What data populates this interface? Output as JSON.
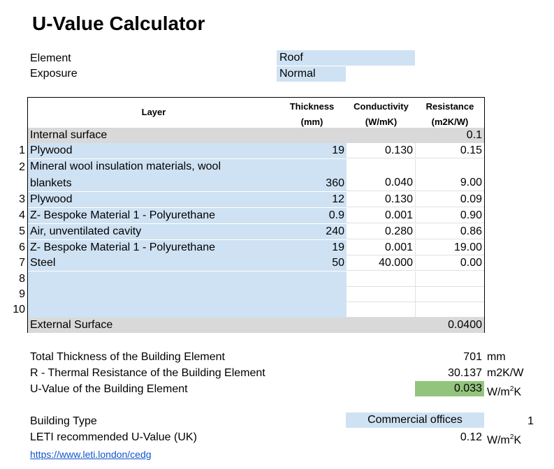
{
  "title": "U-Value Calculator",
  "element": {
    "label": "Element",
    "value": "Roof"
  },
  "exposure": {
    "label": "Exposure",
    "value": "Normal"
  },
  "table": {
    "headers": {
      "layer": "Layer",
      "thickness": "Thickness",
      "thickness_unit": "(mm)",
      "conductivity": "Conductivity",
      "conductivity_unit": "(W/mK)",
      "resistance": "Resistance",
      "resistance_unit": "(m2K/W)"
    },
    "internal_surface": {
      "label": "Internal surface",
      "resistance": "0.1"
    },
    "layers": [
      {
        "num": "1",
        "name": "Plywood",
        "thickness": "19",
        "conductivity": "0.130",
        "resistance": "0.15"
      },
      {
        "num": "2",
        "name": "Mineral wool insulation materials, wool",
        "name2": "blankets",
        "thickness": "360",
        "conductivity": "0.040",
        "resistance": "9.00"
      },
      {
        "num": "3",
        "name": "Plywood",
        "thickness": "12",
        "conductivity": "0.130",
        "resistance": "0.09"
      },
      {
        "num": "4",
        "name": "Z- Bespoke Material 1 - Polyurethane",
        "thickness": "0.9",
        "conductivity": "0.001",
        "resistance": "0.90"
      },
      {
        "num": "5",
        "name": "Air, unventilated cavity",
        "thickness": "240",
        "conductivity": "0.280",
        "resistance": "0.86"
      },
      {
        "num": "6",
        "name": "Z- Bespoke Material 1 - Polyurethane",
        "thickness": "19",
        "conductivity": "0.001",
        "resistance": "19.00"
      },
      {
        "num": "7",
        "name": "Steel",
        "thickness": "50",
        "conductivity": "40.000",
        "resistance": "0.00"
      },
      {
        "num": "8",
        "name": "",
        "thickness": "",
        "conductivity": "",
        "resistance": ""
      },
      {
        "num": "9",
        "name": "",
        "thickness": "",
        "conductivity": "",
        "resistance": ""
      },
      {
        "num": "10",
        "name": "",
        "thickness": "",
        "conductivity": "",
        "resistance": ""
      }
    ],
    "external_surface": {
      "label": "External Surface",
      "resistance": "0.0400"
    }
  },
  "summary": {
    "total_thickness": {
      "label": "Total Thickness of the Building Element",
      "value": "701",
      "unit": "mm"
    },
    "r_value": {
      "label": "R - Thermal Resistance of the Building Element",
      "value": "30.137",
      "unit": "m2K/W"
    },
    "u_value": {
      "label": "U-Value of the Building Element",
      "value": "0.033",
      "unit_base": "W/m",
      "unit_sup": "2",
      "unit_end": "K"
    }
  },
  "building_type": {
    "label": "Building Type",
    "value": "Commercial offices",
    "index": "1"
  },
  "leti": {
    "label": "LETI recommended U-Value (UK)",
    "value": "0.12",
    "unit_base": "W/m",
    "unit_sup": "2",
    "unit_end": "K"
  },
  "link": {
    "text": "https://www.leti.london/cedg"
  },
  "colors": {
    "input_blue": "#cfe2f3",
    "surface_gray": "#d9d9d9",
    "result_green": "#93c47d",
    "link": "#1155cc"
  }
}
